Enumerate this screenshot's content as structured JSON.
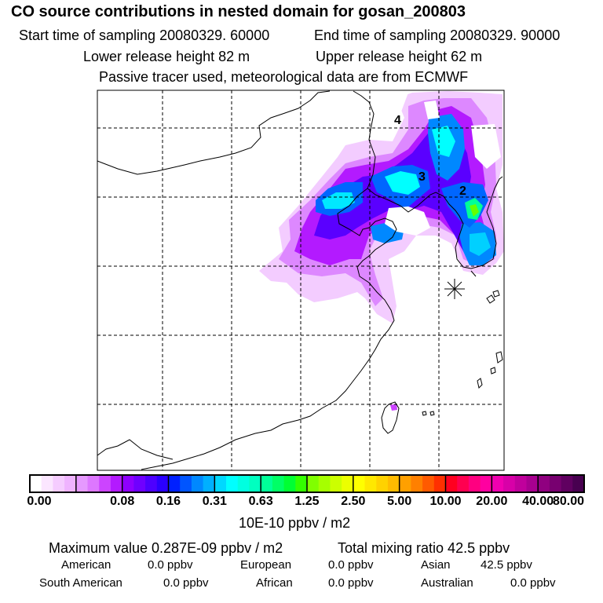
{
  "header": {
    "title": "CO  source contributions in nested domain for gosan_200803",
    "start_time": "Start time of sampling 20080329. 60000",
    "end_time": "End time of sampling 20080329. 90000",
    "lower_release": "Lower release height   82 m",
    "upper_release": "Upper release height   62 m",
    "tracer_note": "Passive tracer used, meteorological data are from ECMWF"
  },
  "map": {
    "labels": [
      "4",
      "3",
      "2"
    ],
    "receptor_marker": "asterisk",
    "colors": {
      "land_outline": "#000000",
      "grid": "#000000"
    }
  },
  "colorbar": {
    "tick_labels": [
      "0.00",
      "0.08",
      "0.16",
      "0.31",
      "0.63",
      "1.25",
      "2.50",
      "5.00",
      "10.00",
      "20.00",
      "40.00",
      "80.00"
    ],
    "colors": [
      [
        "#ffffff",
        "#fbe6ff",
        "#f5ccff",
        "#efb3ff"
      ],
      [
        "#e699ff",
        "#dd77ff",
        "#cc44ff",
        "#b31aff"
      ],
      [
        "#8f00ff",
        "#6f00ff",
        "#4d00ff",
        "#2a00ff"
      ],
      [
        "#0020ff",
        "#0055ff",
        "#0088ff",
        "#00b0ff"
      ],
      [
        "#00d8ff",
        "#00ffff",
        "#00ffe0",
        "#00ffc0"
      ],
      [
        "#00ff99",
        "#00ff66",
        "#00ff33",
        "#33ff00"
      ],
      [
        "#80ff00",
        "#a6ff00",
        "#ccff00",
        "#ecff00"
      ],
      [
        "#ffff00",
        "#ffe800",
        "#ffd200",
        "#ffbb00"
      ],
      [
        "#ffa000",
        "#ff8000",
        "#ff5a00",
        "#ff3000"
      ],
      [
        "#ff0020",
        "#ff0050",
        "#ff0080",
        "#ff00a0"
      ],
      [
        "#f000b0",
        "#d800a8",
        "#c0009c",
        "#a80090"
      ],
      [
        "#900080",
        "#780070",
        "#600060",
        "#480050"
      ]
    ],
    "units": "10E-10 ppbv / m2"
  },
  "summary": {
    "max_value": "Maximum value  0.287E-09 ppbv / m2",
    "total_mixing": "Total mixing ratio       42.5 ppbv",
    "regions": [
      {
        "name": "American",
        "value": "0.0 ppbv"
      },
      {
        "name": "European",
        "value": "0.0 ppbv"
      },
      {
        "name": "Asian",
        "value": "42.5 ppbv"
      },
      {
        "name": "South American",
        "value": "0.0 ppbv"
      },
      {
        "name": "African",
        "value": "0.0 ppbv"
      },
      {
        "name": "Australian",
        "value": "0.0 ppbv"
      }
    ]
  }
}
